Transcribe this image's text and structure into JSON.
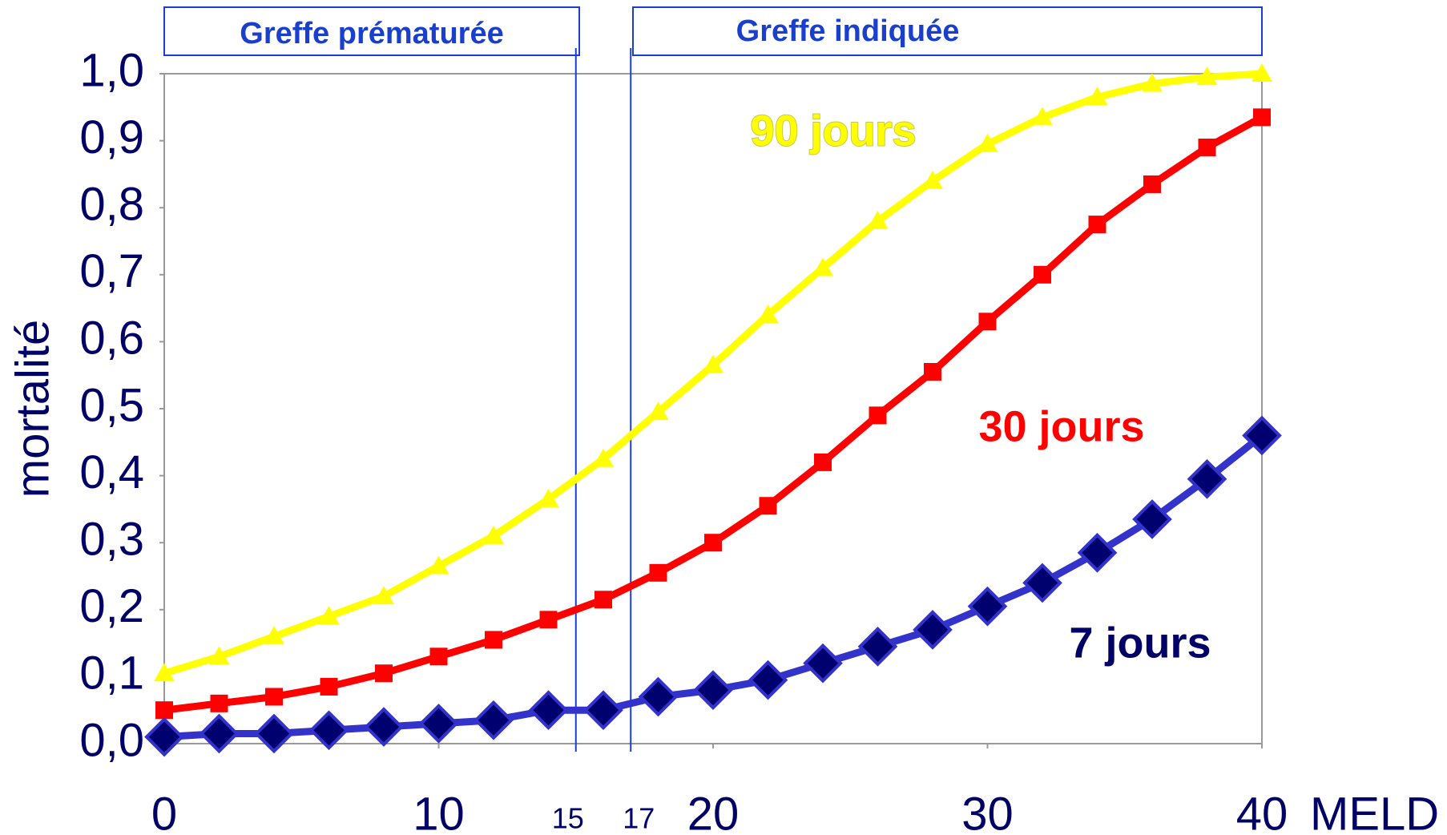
{
  "chart_data": {
    "type": "line",
    "y_label": "mortalité",
    "x_label": "MELD",
    "regions": [
      "Greffe prématurée",
      "Greffe indiquée"
    ],
    "x": [
      0,
      2,
      4,
      6,
      8,
      10,
      12,
      14,
      16,
      18,
      20,
      22,
      24,
      26,
      28,
      30,
      32,
      34,
      36,
      38,
      40
    ],
    "series": [
      {
        "name": "90 jours",
        "color": "#ffff00",
        "marker_color": "#ffff00",
        "marker": "triangle",
        "values": [
          0.105,
          0.13,
          0.16,
          0.19,
          0.22,
          0.265,
          0.31,
          0.365,
          0.425,
          0.495,
          0.565,
          0.64,
          0.71,
          0.78,
          0.84,
          0.895,
          0.935,
          0.965,
          0.985,
          0.995,
          1.0
        ]
      },
      {
        "name": "30 jours",
        "color": "#ff0000",
        "marker_color": "#ff0000",
        "marker": "square",
        "values": [
          0.05,
          0.06,
          0.07,
          0.085,
          0.105,
          0.13,
          0.155,
          0.185,
          0.215,
          0.255,
          0.3,
          0.355,
          0.42,
          0.49,
          0.555,
          0.63,
          0.7,
          0.775,
          0.835,
          0.89,
          0.935
        ]
      },
      {
        "name": "7 jours",
        "color": "#3333cc",
        "marker_color": "#00006e",
        "marker": "diamond",
        "values": [
          0.01,
          0.015,
          0.015,
          0.02,
          0.025,
          0.03,
          0.035,
          0.05,
          0.05,
          0.07,
          0.08,
          0.095,
          0.12,
          0.145,
          0.17,
          0.205,
          0.24,
          0.285,
          0.335,
          0.395,
          0.46
        ]
      }
    ],
    "xlim": [
      0,
      40
    ],
    "xticks": [
      0,
      10,
      20,
      30,
      40
    ],
    "markers": [
      15,
      17
    ],
    "ylim": [
      0,
      1
    ],
    "yticks": [
      {
        "value": 0,
        "label": "0,0"
      },
      {
        "value": 0.1,
        "label": "0,1"
      },
      {
        "value": 0.2,
        "label": "0,2"
      },
      {
        "value": 0.3,
        "label": "0,3"
      },
      {
        "value": 0.4,
        "label": "0,4"
      },
      {
        "value": 0.5,
        "label": "0,5"
      },
      {
        "value": 0.6,
        "label": "0,6"
      },
      {
        "value": 0.7,
        "label": "0,7"
      },
      {
        "value": 0.8,
        "label": "0,8"
      },
      {
        "value": 0.9,
        "label": "0,9"
      },
      {
        "value": 1,
        "label": "1,0"
      }
    ]
  }
}
